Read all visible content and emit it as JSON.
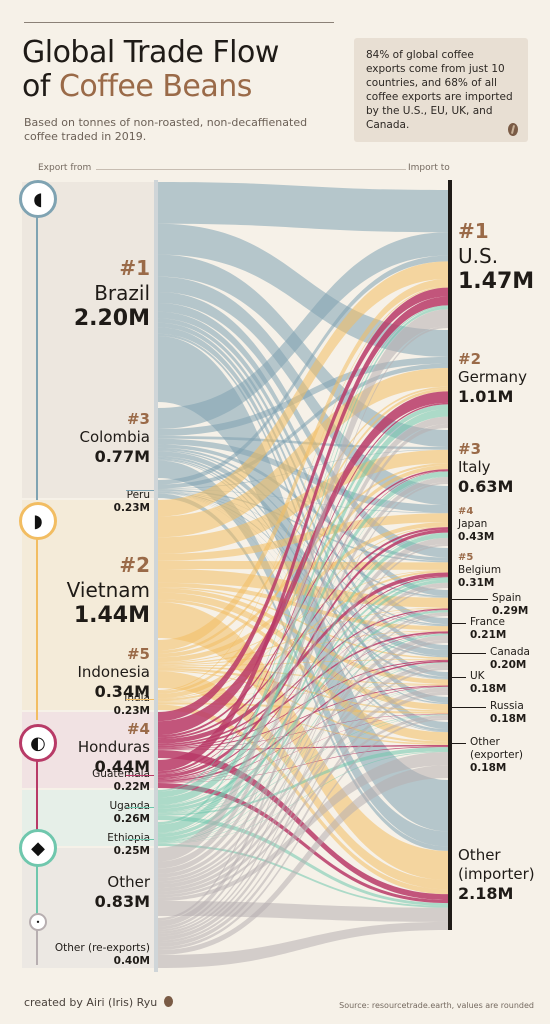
{
  "header": {
    "title_line1": "Global Trade Flow",
    "title_of": "of ",
    "title_coffee": "Coffee",
    "title_beans": " Beans",
    "subtitle": "Based on tonnes of non-roasted, non-decaffienated coffee traded in 2019.",
    "callout": "84% of global coffee exports come from just 10 countries, and 68% of all coffee exports are imported by the U.S., EU, UK, and Canada."
  },
  "axis": {
    "left": "Export from",
    "right": "Import to"
  },
  "colors": {
    "south_america": "#7fa3b2",
    "asia": "#f2bd62",
    "central_america": "#b83a67",
    "africa": "#6fc7ad",
    "other": "#b7aeb0",
    "text_accent": "#9a6a48"
  },
  "continents": [
    {
      "name": "south-america",
      "icon": "south-america-icon",
      "glyph": "◖"
    },
    {
      "name": "asia",
      "icon": "asia-icon",
      "glyph": "◗"
    },
    {
      "name": "central-america",
      "icon": "central-america-icon",
      "glyph": "◐"
    },
    {
      "name": "africa",
      "icon": "africa-icon",
      "glyph": "◆"
    },
    {
      "name": "other",
      "icon": "oceania-icon",
      "glyph": "•"
    }
  ],
  "chart_data": {
    "type": "sankey",
    "unit": "M tonnes",
    "exporters": [
      {
        "rank": "#1",
        "name": "Brazil",
        "value_label": "2.20M",
        "value": 2.2,
        "region": "south_america"
      },
      {
        "rank": "#3",
        "name": "Colombia",
        "value_label": "0.77M",
        "value": 0.77,
        "region": "south_america"
      },
      {
        "rank": "",
        "name": "Peru",
        "value_label": "0.23M",
        "value": 0.23,
        "region": "south_america"
      },
      {
        "rank": "#2",
        "name": "Vietnam",
        "value_label": "1.44M",
        "value": 1.44,
        "region": "asia"
      },
      {
        "rank": "#5",
        "name": "Indonesia",
        "value_label": "0.34M",
        "value": 0.34,
        "region": "asia"
      },
      {
        "rank": "",
        "name": "India",
        "value_label": "0.23M",
        "value": 0.23,
        "region": "asia"
      },
      {
        "rank": "#4",
        "name": "Honduras",
        "value_label": "0.44M",
        "value": 0.44,
        "region": "central_america"
      },
      {
        "rank": "",
        "name": "Guatemala",
        "value_label": "0.22M",
        "value": 0.22,
        "region": "central_america"
      },
      {
        "rank": "",
        "name": "Uganda",
        "value_label": "0.26M",
        "value": 0.26,
        "region": "africa"
      },
      {
        "rank": "",
        "name": "Ethiopia",
        "value_label": "0.25M",
        "value": 0.25,
        "region": "africa"
      },
      {
        "rank": "",
        "name": "Other",
        "value_label": "0.83M",
        "value": 0.83,
        "region": "other"
      },
      {
        "rank": "",
        "name": "Other (re-exports)",
        "value_label": "0.40M",
        "value": 0.4,
        "region": "other"
      }
    ],
    "importers": [
      {
        "rank": "#1",
        "name": "U.S.",
        "value_label": "1.47M",
        "value": 1.47
      },
      {
        "rank": "#2",
        "name": "Germany",
        "value_label": "1.01M",
        "value": 1.01
      },
      {
        "rank": "#3",
        "name": "Italy",
        "value_label": "0.63M",
        "value": 0.63
      },
      {
        "rank": "#4",
        "name": "Japan",
        "value_label": "0.43M",
        "value": 0.43
      },
      {
        "rank": "#5",
        "name": "Belgium",
        "value_label": "0.31M",
        "value": 0.31
      },
      {
        "rank": "",
        "name": "Spain",
        "value_label": "0.29M",
        "value": 0.29
      },
      {
        "rank": "",
        "name": "France",
        "value_label": "0.21M",
        "value": 0.21
      },
      {
        "rank": "",
        "name": "Canada",
        "value_label": "0.20M",
        "value": 0.2
      },
      {
        "rank": "",
        "name": "UK",
        "value_label": "0.18M",
        "value": 0.18
      },
      {
        "rank": "",
        "name": "Russia",
        "value_label": "0.18M",
        "value": 0.18
      },
      {
        "rank": "",
        "name": "Other (exporter)",
        "value_label": "0.18M",
        "value": 0.18
      },
      {
        "rank": "",
        "name": "Other (importer)",
        "value_label": "2.18M",
        "value": 2.18
      }
    ]
  },
  "footer": {
    "credit": "created by Airi (Iris) Ryu",
    "source": "Source: resourcetrade.earth, values are rounded"
  }
}
